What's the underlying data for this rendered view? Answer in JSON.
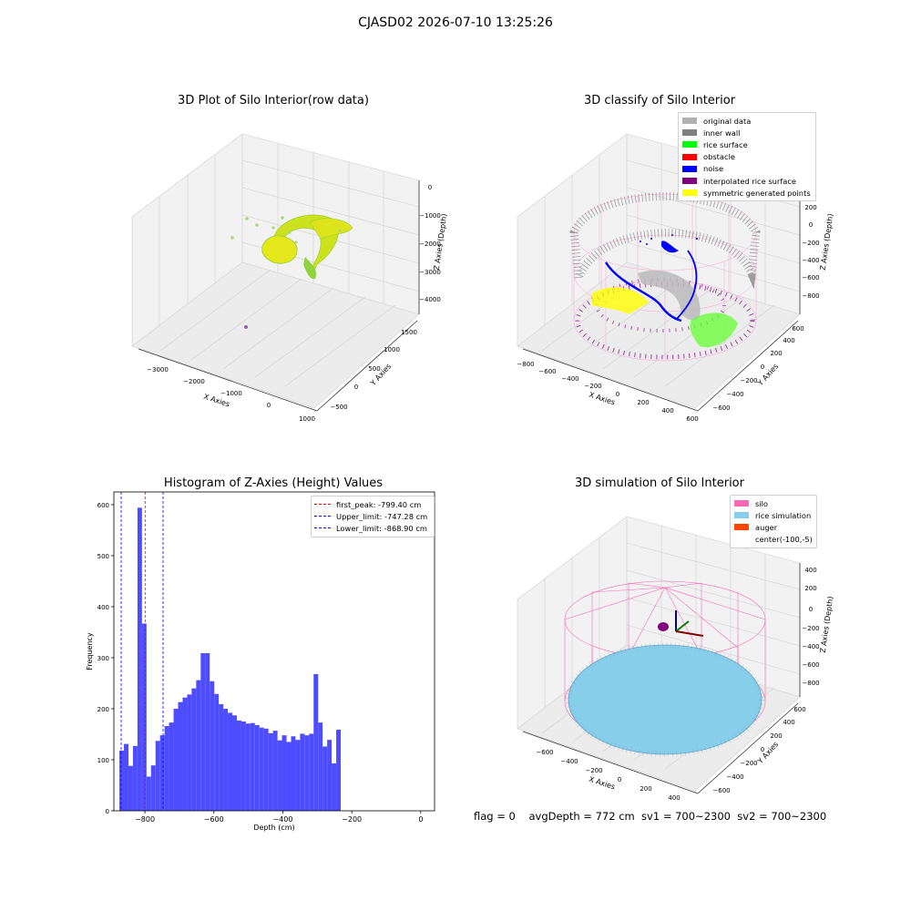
{
  "suptitle": "CJASD02 2026-07-10 13:25:26",
  "status_text": "flag = 0    avgDepth = 772 cm  sv1 = 700~2300  sv2 = 700~2300",
  "chart_data": [
    {
      "type": "scatter",
      "title": "3D Plot of Silo Interior(row data)",
      "xlabel": "X Axies",
      "ylabel": "Y Axies",
      "zlabel": "Z Axies (Depth)",
      "x_ticks": [
        "−3000",
        "−2000",
        "−1000",
        "0",
        "1000"
      ],
      "y_ticks": [
        "−500",
        "0",
        "500",
        "1000",
        "1500"
      ],
      "z_ticks": [
        "0",
        "−1000",
        "−2000",
        "−3000",
        "−4000"
      ],
      "colors": {
        "points": "#d4e01a",
        "points_dark": "#7cc928",
        "outlier": "#9a5fb2"
      }
    },
    {
      "type": "scatter",
      "title": "3D classify of Silo Interior",
      "xlabel": "X Axies",
      "ylabel": "Y Axies",
      "zlabel": "Z Axies (Depth)",
      "x_ticks": [
        "−800",
        "−600",
        "−400",
        "−200",
        "0",
        "200",
        "400",
        "600"
      ],
      "y_ticks": [
        "−600",
        "−400",
        "−200",
        "0",
        "200",
        "400",
        "600"
      ],
      "z_ticks": [
        "200",
        "0",
        "−200",
        "−400",
        "−600",
        "−800"
      ],
      "legend": [
        {
          "label": "original data",
          "color": "#b0b0b0"
        },
        {
          "label": "inner wall",
          "color": "#808080"
        },
        {
          "label": "rice surface",
          "color": "#00ff00"
        },
        {
          "label": "obstacle",
          "color": "#ff0000"
        },
        {
          "label": "noise",
          "color": "#0000ff"
        },
        {
          "label": "interpolated rice surface",
          "color": "#800080"
        },
        {
          "label": "symmetric generated points",
          "color": "#ffff00"
        }
      ]
    },
    {
      "type": "bar",
      "title": "Histogram of Z-Axies (Height) Values",
      "xlabel": "Depth (cm)",
      "ylabel": "Frequency",
      "bar_color": "#4d4dff",
      "bin_start": -874,
      "bin_width": 13.1,
      "values": [
        118,
        131,
        88,
        127,
        594,
        367,
        67,
        89,
        137,
        148,
        166,
        173,
        200,
        213,
        222,
        228,
        240,
        256,
        309,
        309,
        254,
        229,
        209,
        200,
        192,
        187,
        177,
        175,
        171,
        172,
        168,
        163,
        161,
        152,
        157,
        138,
        148,
        135,
        146,
        139,
        151,
        148,
        151,
        268,
        173,
        126,
        139,
        93,
        159
      ],
      "xlim": [
        -890,
        40
      ],
      "ylim": [
        0,
        625
      ],
      "x_ticks": [
        -800,
        -600,
        -400,
        -200,
        0
      ],
      "y_ticks": [
        0,
        100,
        200,
        300,
        400,
        500,
        600
      ],
      "vlines": [
        {
          "label": "first_peak: -799.40 cm",
          "x": -799.4,
          "color": "#ff0000"
        },
        {
          "label": "Upper_limit: -747.28 cm",
          "x": -747.28,
          "color": "#0000ff"
        },
        {
          "label": "Lower_limit: -868.90 cm",
          "x": -868.9,
          "color": "#0000ff"
        }
      ]
    },
    {
      "type": "scatter",
      "title": "3D simulation of Silo Interior",
      "xlabel": "X Axies",
      "ylabel": "Y Axies",
      "zlabel": "Z Axies (Depth)",
      "x_ticks": [
        "−600",
        "−400",
        "−200",
        "0",
        "200",
        "400"
      ],
      "y_ticks": [
        "−600",
        "−400",
        "−200",
        "0",
        "200",
        "400",
        "600"
      ],
      "z_ticks": [
        "400",
        "200",
        "0",
        "−200",
        "−400",
        "−600",
        "−800"
      ],
      "legend": [
        {
          "label": "silo",
          "color": "#ff69b4"
        },
        {
          "label": "rice simulation",
          "color": "#87ceeb"
        },
        {
          "label": "auger",
          "color": "#ff4500"
        },
        {
          "label": "center(-100,-5)",
          "color": ""
        }
      ]
    }
  ]
}
